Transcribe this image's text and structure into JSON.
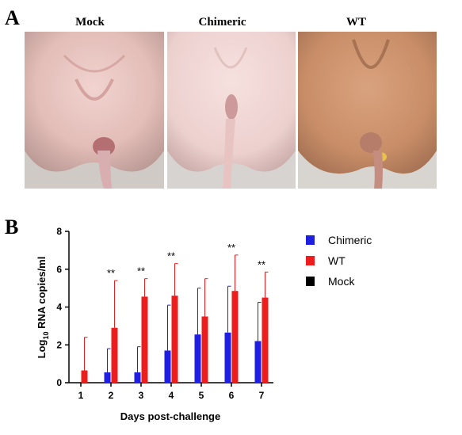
{
  "panel_a": {
    "letter": "A",
    "photos": [
      {
        "label": "Mock"
      },
      {
        "label": "Chimeric"
      },
      {
        "label": "WT"
      }
    ]
  },
  "panel_b": {
    "letter": "B"
  },
  "chart_data": {
    "type": "bar",
    "categories": [
      "1",
      "2",
      "3",
      "4",
      "5",
      "6",
      "7"
    ],
    "xlabel": "Days post-challenge",
    "ylabel_main": "Log",
    "ylabel_sub": "10",
    "ylabel_rest": " RNA copies/ml",
    "ylim": [
      0,
      8
    ],
    "yticks": [
      "0",
      "2",
      "4",
      "6",
      "8"
    ],
    "legend_position": "right",
    "series": [
      {
        "name": "Chimeric",
        "color": "#1f1fe0",
        "values": [
          0,
          0.55,
          0.55,
          1.7,
          2.55,
          2.65,
          2.2
        ],
        "errors": [
          0,
          1.25,
          1.35,
          2.4,
          2.45,
          2.45,
          2.05
        ]
      },
      {
        "name": "WT",
        "color": "#ee1c1c",
        "values": [
          0.65,
          2.9,
          4.55,
          4.6,
          3.5,
          4.85,
          4.5
        ],
        "errors": [
          1.75,
          2.5,
          0.95,
          1.7,
          2.0,
          1.9,
          1.35
        ]
      },
      {
        "name": "Mock",
        "color": "#000000",
        "values": [
          0,
          0,
          0,
          0,
          0,
          0,
          0
        ],
        "errors": [
          0,
          0,
          0,
          0,
          0,
          0,
          0
        ]
      }
    ],
    "annotations": [
      {
        "category": "2",
        "text": "**"
      },
      {
        "category": "3",
        "text": "**"
      },
      {
        "category": "4",
        "text": "**"
      },
      {
        "category": "6",
        "text": "**"
      },
      {
        "category": "7",
        "text": "**"
      }
    ]
  }
}
